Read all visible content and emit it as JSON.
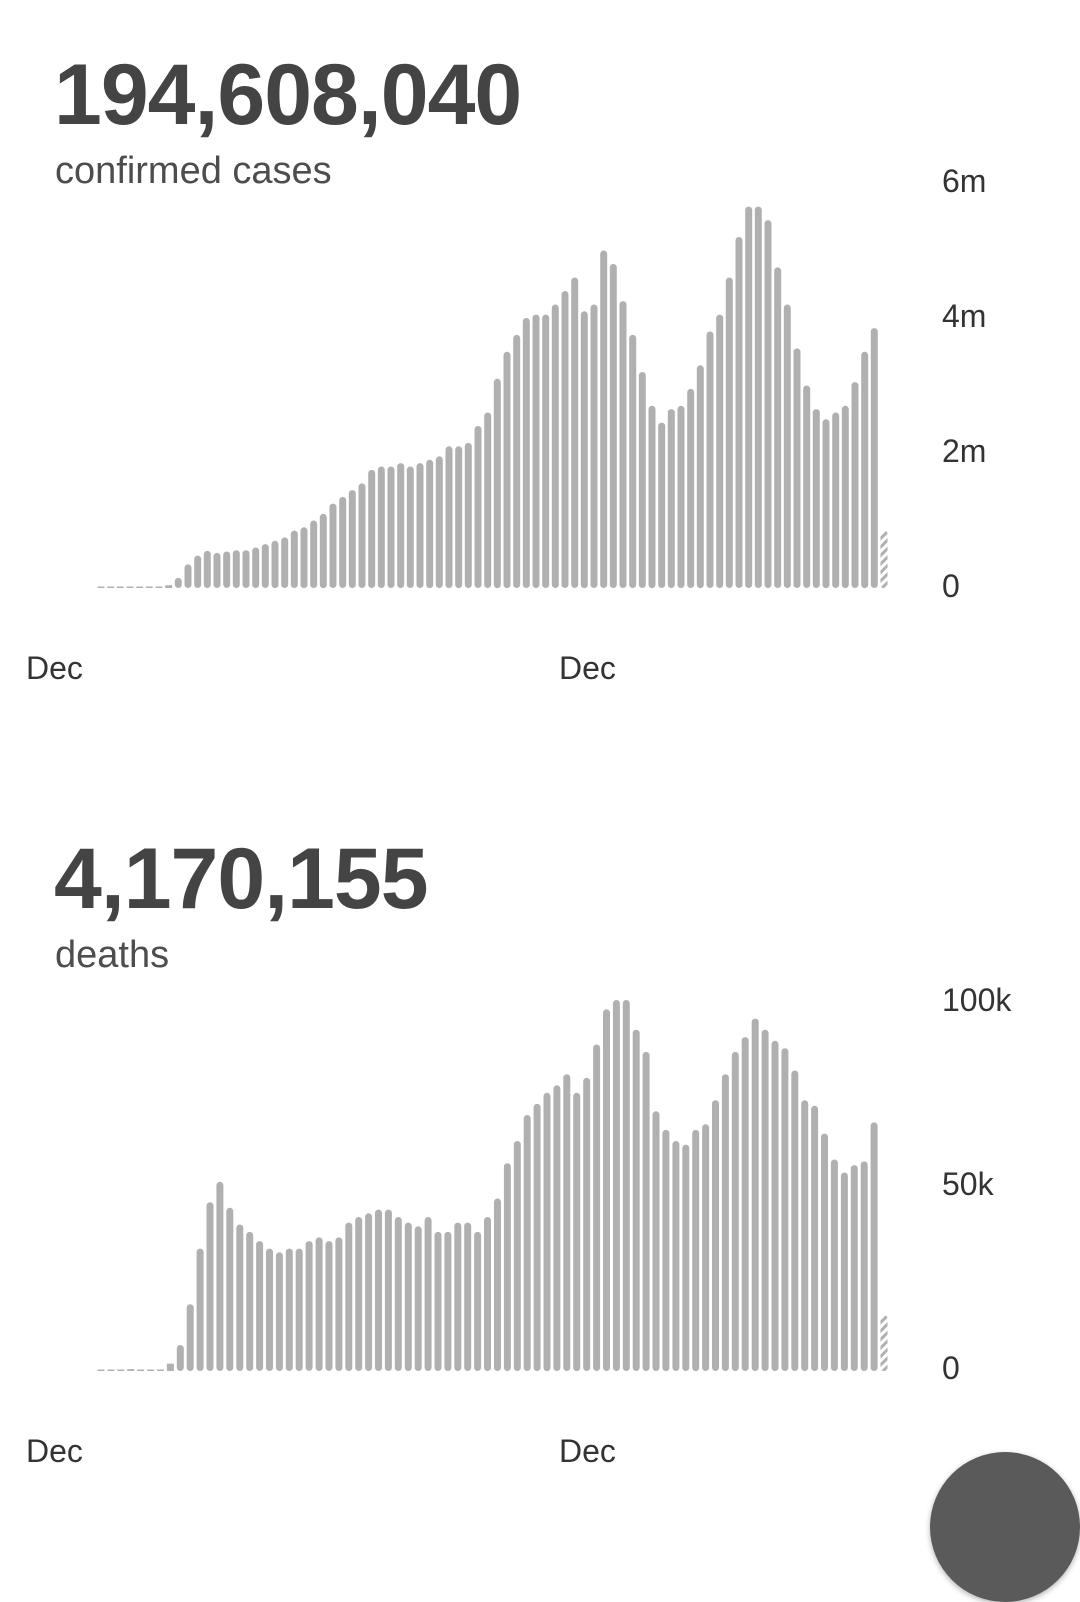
{
  "colors": {
    "bar": "#b0b0b0",
    "text": "#444444",
    "fab": "#5a5a5a"
  },
  "cases": {
    "total": "194,608,040",
    "label": "confirmed cases",
    "chart_data": {
      "type": "bar",
      "yticks": [
        "0",
        "2m",
        "4m",
        "6m"
      ],
      "ylim": [
        0,
        6000000
      ],
      "xticks": [
        "Dec",
        "Dec"
      ],
      "values": [
        5000,
        8000,
        10000,
        10000,
        8000,
        6000,
        12000,
        40000,
        150000,
        350000,
        480000,
        550000,
        520000,
        540000,
        560000,
        560000,
        600000,
        650000,
        700000,
        750000,
        850000,
        900000,
        1000000,
        1100000,
        1250000,
        1350000,
        1450000,
        1550000,
        1750000,
        1800000,
        1800000,
        1850000,
        1800000,
        1850000,
        1900000,
        1950000,
        2100000,
        2100000,
        2150000,
        2400000,
        2600000,
        3100000,
        3500000,
        3750000,
        4000000,
        4050000,
        4050000,
        4200000,
        4400000,
        4600000,
        4100000,
        4200000,
        5000000,
        4800000,
        4250000,
        3750000,
        3200000,
        2700000,
        2450000,
        2650000,
        2700000,
        2950000,
        3300000,
        3800000,
        4050000,
        4600000,
        5200000,
        5650000,
        5650000,
        5450000,
        4750000,
        4200000,
        3550000,
        3000000,
        2650000,
        2500000,
        2600000,
        2700000,
        3050000,
        3500000,
        3850000
      ],
      "partial_last_value": 850000
    }
  },
  "deaths": {
    "total": "4,170,155",
    "label": "deaths",
    "chart_data": {
      "type": "bar",
      "yticks": [
        "0",
        "50k",
        "100k"
      ],
      "ylim": [
        0,
        100000
      ],
      "xticks": [
        "Dec",
        "Dec"
      ],
      "values": [
        100,
        200,
        300,
        500,
        300,
        200,
        400,
        2000,
        7000,
        18000,
        33000,
        45500,
        51000,
        44000,
        39500,
        37500,
        35000,
        33000,
        32000,
        33000,
        33000,
        35000,
        36000,
        35000,
        36000,
        40000,
        41500,
        42500,
        43500,
        43500,
        41500,
        40000,
        39000,
        41500,
        37500,
        37500,
        40000,
        40000,
        37500,
        41500,
        46500,
        56000,
        62000,
        69000,
        72000,
        75000,
        77000,
        80000,
        75000,
        79000,
        88000,
        97500,
        100000,
        100000,
        92000,
        86000,
        70000,
        65000,
        62000,
        61000,
        65000,
        66500,
        73000,
        80000,
        86000,
        90000,
        95000,
        92000,
        89000,
        87000,
        81000,
        73000,
        71500,
        64000,
        57000,
        53500,
        55500,
        56500,
        67000
      ],
      "partial_last_value": 15000
    }
  }
}
